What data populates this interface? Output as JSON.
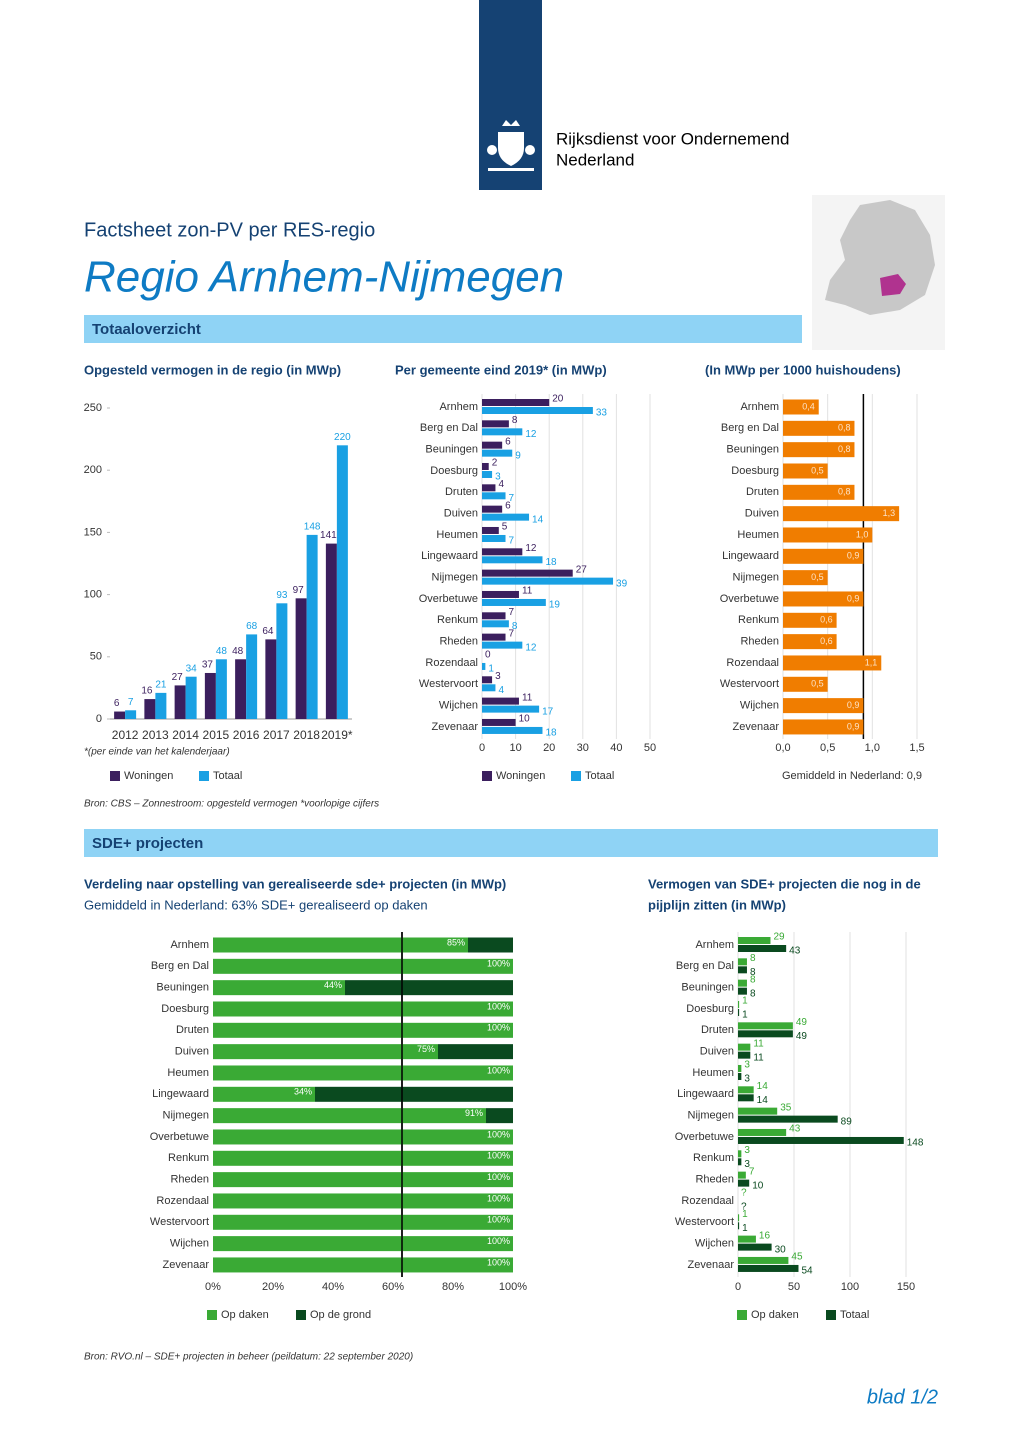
{
  "header": {
    "org": [
      "Rijksdienst voor Ondernemend",
      "Nederland"
    ],
    "subtitle": "Factsheet zon-PV per RES-regio",
    "title": "Regio Arnhem-Nijmegen"
  },
  "sections": [
    {
      "title": "Totaaloverzicht"
    },
    {
      "title": "SDE+ projecten"
    }
  ],
  "sources": [
    "Bron: CBS – Zonnestroom: opgesteld vermogen *voorlopige cijfers",
    "Bron: RVO.nl – SDE+ projecten in beheer (peildatum: 22 september 2020)"
  ],
  "page_label": "blad 1/2",
  "chart_data": [
    {
      "type": "bar",
      "title": "Opgesteld vermogen in de regio (in MWp)",
      "note": "*(per einde van het kalenderjaar)",
      "categories": [
        "2012",
        "2013",
        "2014",
        "2015",
        "2016",
        "2017",
        "2018",
        "2019*"
      ],
      "series": [
        {
          "name": "Woningen",
          "color": "#3b1f5e",
          "values": [
            6,
            16,
            27,
            37,
            48,
            64,
            97,
            141
          ]
        },
        {
          "name": "Totaal",
          "color": "#19a0e3",
          "values": [
            7,
            21,
            34,
            48,
            68,
            93,
            148,
            220
          ]
        }
      ],
      "ylim": [
        0,
        250
      ],
      "yticks": [
        0,
        50,
        100,
        150,
        200,
        250
      ]
    },
    {
      "type": "hbar",
      "title": "Per gemeente eind 2019* (in MWp)",
      "categories": [
        "Arnhem",
        "Berg en Dal",
        "Beuningen",
        "Doesburg",
        "Druten",
        "Duiven",
        "Heumen",
        "Lingewaard",
        "Nijmegen",
        "Overbetuwe",
        "Renkum",
        "Rheden",
        "Rozendaal",
        "Westervoort",
        "Wijchen",
        "Zevenaar"
      ],
      "series": [
        {
          "name": "Woningen",
          "color": "#3b1f5e",
          "values": [
            20,
            8,
            6,
            2,
            4,
            6,
            5,
            12,
            27,
            11,
            7,
            7,
            0,
            3,
            11,
            10
          ]
        },
        {
          "name": "Totaal",
          "color": "#19a0e3",
          "values": [
            33,
            12,
            9,
            3,
            7,
            14,
            7,
            18,
            39,
            19,
            8,
            12,
            1,
            4,
            17,
            18
          ]
        }
      ],
      "xlim": [
        0,
        50
      ],
      "xticks": [
        0,
        10,
        20,
        30,
        40,
        50
      ],
      "grid": true
    },
    {
      "type": "hbar",
      "title": "(In MWp per 1000 huishoudens)",
      "categories": [
        "Arnhem",
        "Berg en Dal",
        "Beuningen",
        "Doesburg",
        "Druten",
        "Duiven",
        "Heumen",
        "Lingewaard",
        "Nijmegen",
        "Overbetuwe",
        "Renkum",
        "Rheden",
        "Rozendaal",
        "Westervoort",
        "Wijchen",
        "Zevenaar"
      ],
      "values": [
        0.4,
        0.8,
        0.8,
        0.5,
        0.8,
        1.3,
        1.0,
        0.9,
        0.5,
        0.9,
        0.6,
        0.6,
        1.1,
        0.5,
        0.9,
        0.9
      ],
      "value_labels": [
        "0,4",
        "0,8",
        "0,8",
        "0,5",
        "0,8",
        "1,3",
        "1,0",
        "0,9",
        "0,5",
        "0,9",
        "0,6",
        "0,6",
        "1,1",
        "0,5",
        "0,9",
        "0,9"
      ],
      "color": "#f07d00",
      "xlim": [
        0,
        1.5
      ],
      "xticks": [
        {
          "value": 0,
          "label": "0,0"
        },
        {
          "value": 0.5,
          "label": "0,5"
        },
        {
          "value": 1,
          "label": "1,0"
        },
        {
          "value": 1.5,
          "label": "1,5"
        }
      ],
      "grid": true,
      "reference_line": {
        "value": 0.9,
        "label": "Gemiddeld in Nederland: 0,9"
      }
    },
    {
      "type": "stacked-hbar",
      "title": "Verdeling naar opstelling van gerealiseerde sde+ projecten (in MWp)",
      "subtitle": "Gemiddeld in Nederland: 63% SDE+ gerealiseerd op daken",
      "reference_line": {
        "value": 63
      },
      "categories": [
        "Arnhem",
        "Berg en Dal",
        "Beuningen",
        "Doesburg",
        "Druten",
        "Duiven",
        "Heumen",
        "Lingewaard",
        "Nijmegen",
        "Overbetuwe",
        "Renkum",
        "Rheden",
        "Rozendaal",
        "Westervoort",
        "Wijchen",
        "Zevenaar"
      ],
      "series": [
        {
          "name": "Op daken",
          "color": "#3aaa35",
          "values": [
            85,
            100,
            44,
            100,
            100,
            75,
            100,
            34,
            91,
            100,
            100,
            100,
            100,
            100,
            100,
            100
          ],
          "value_labels": [
            "85%",
            "100%",
            "44%",
            "100%",
            "100%",
            "75%",
            "100%",
            "34%",
            "91%",
            "100%",
            "100%",
            "100%",
            "100%",
            "100%",
            "100%",
            "100%"
          ]
        },
        {
          "name": "Op de grond",
          "color": "#0a4a1f",
          "values": [
            15,
            0,
            56,
            0,
            0,
            25,
            0,
            66,
            9,
            0,
            0,
            0,
            0,
            0,
            0,
            0
          ]
        }
      ],
      "xlim": [
        0,
        100
      ],
      "xticks": [
        {
          "value": 0,
          "label": "0%"
        },
        {
          "value": 20,
          "label": "20%"
        },
        {
          "value": 40,
          "label": "40%"
        },
        {
          "value": 60,
          "label": "60%"
        },
        {
          "value": 80,
          "label": "80%"
        },
        {
          "value": 100,
          "label": "100%"
        }
      ]
    },
    {
      "type": "hbar",
      "title": [
        "Vermogen van SDE+ projecten die nog in de",
        "pijplijn zitten (in MWp)"
      ],
      "categories": [
        "Arnhem",
        "Berg en Dal",
        "Beuningen",
        "Doesburg",
        "Druten",
        "Duiven",
        "Heumen",
        "Lingewaard",
        "Nijmegen",
        "Overbetuwe",
        "Renkum",
        "Rheden",
        "Rozendaal",
        "Westervoort",
        "Wijchen",
        "Zevenaar"
      ],
      "series": [
        {
          "name": "Op daken",
          "color": "#3aaa35",
          "values": [
            29,
            8,
            8,
            1,
            49,
            11,
            3,
            14,
            35,
            43,
            3,
            7,
            null,
            1,
            16,
            45
          ],
          "value_labels": [
            "29",
            "8",
            "8",
            "1",
            "49",
            "11",
            "3",
            "14",
            "35",
            "43",
            "3",
            "7",
            "?",
            "1",
            "16",
            "45"
          ]
        },
        {
          "name": "Totaal",
          "color": "#0a4a1f",
          "values": [
            43,
            8,
            8,
            1,
            49,
            11,
            3,
            14,
            89,
            148,
            3,
            10,
            null,
            1,
            30,
            54
          ],
          "value_labels": [
            "43",
            "8",
            "8",
            "1",
            "49",
            "11",
            "3",
            "14",
            "89",
            "148",
            "3",
            "10",
            "?",
            "1",
            "30",
            "54"
          ]
        }
      ],
      "xlim": [
        0,
        150
      ],
      "xticks": [
        0,
        50,
        100,
        150
      ],
      "grid": true
    }
  ]
}
